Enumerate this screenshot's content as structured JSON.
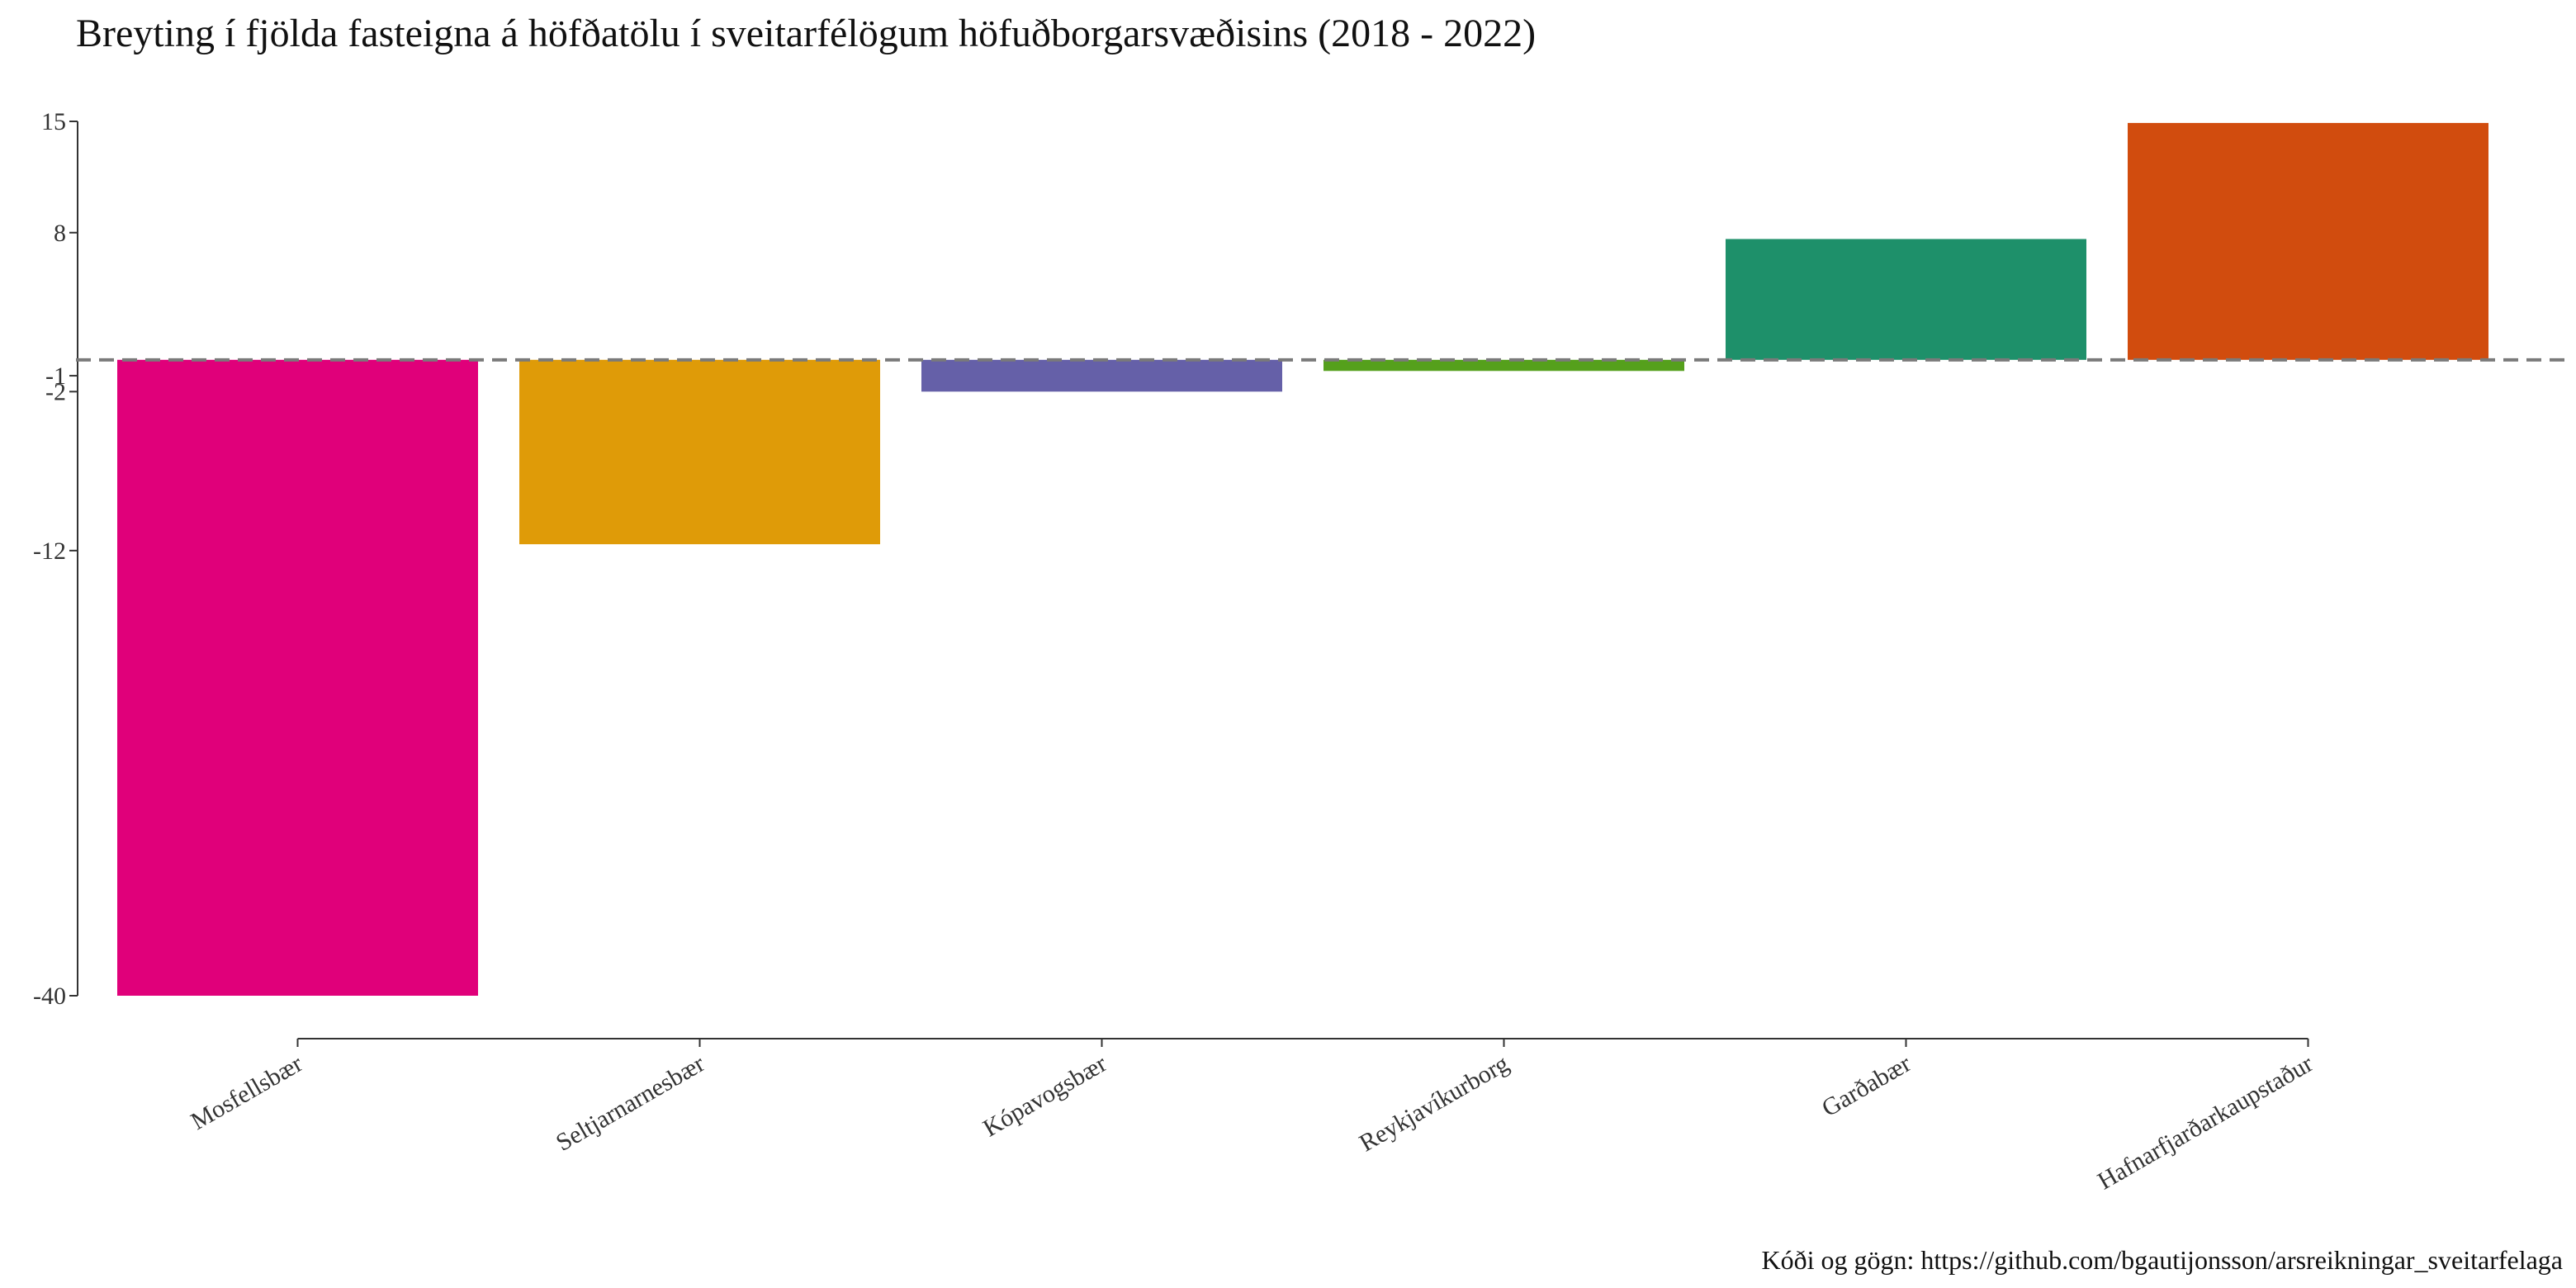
{
  "chart_data": {
    "type": "bar",
    "title": "Breyting í fjölda fasteigna á höfðatölu í sveitarfélögum höfuðborgarsvæðisins (2018 - 2022)",
    "caption": "Kóði og gögn: https://github.com/bgautijonsson/arsreikningar_sveitarfelaga",
    "categories": [
      "Mosfellsbær",
      "Seltjarnarnesbær",
      "Kópavogsbær",
      "Reykjavíkurborg",
      "Garðabær",
      "Hafnarfjarðarkaupstaður"
    ],
    "values": [
      -40,
      -11.6,
      -2,
      -0.7,
      7.6,
      14.9
    ],
    "colors": [
      "#e0007a",
      "#df9b08",
      "#6560a8",
      "#55a01c",
      "#1e906a",
      "#d14c0e"
    ],
    "yticks": [
      15,
      8,
      -1,
      -2,
      -12,
      -40
    ],
    "ytick_labels": [
      "15",
      "8",
      "-1",
      "-2",
      "-12",
      "-40"
    ],
    "ylim": [
      -40,
      15
    ],
    "reference_line": 0,
    "xlabel": "",
    "ylabel": ""
  }
}
